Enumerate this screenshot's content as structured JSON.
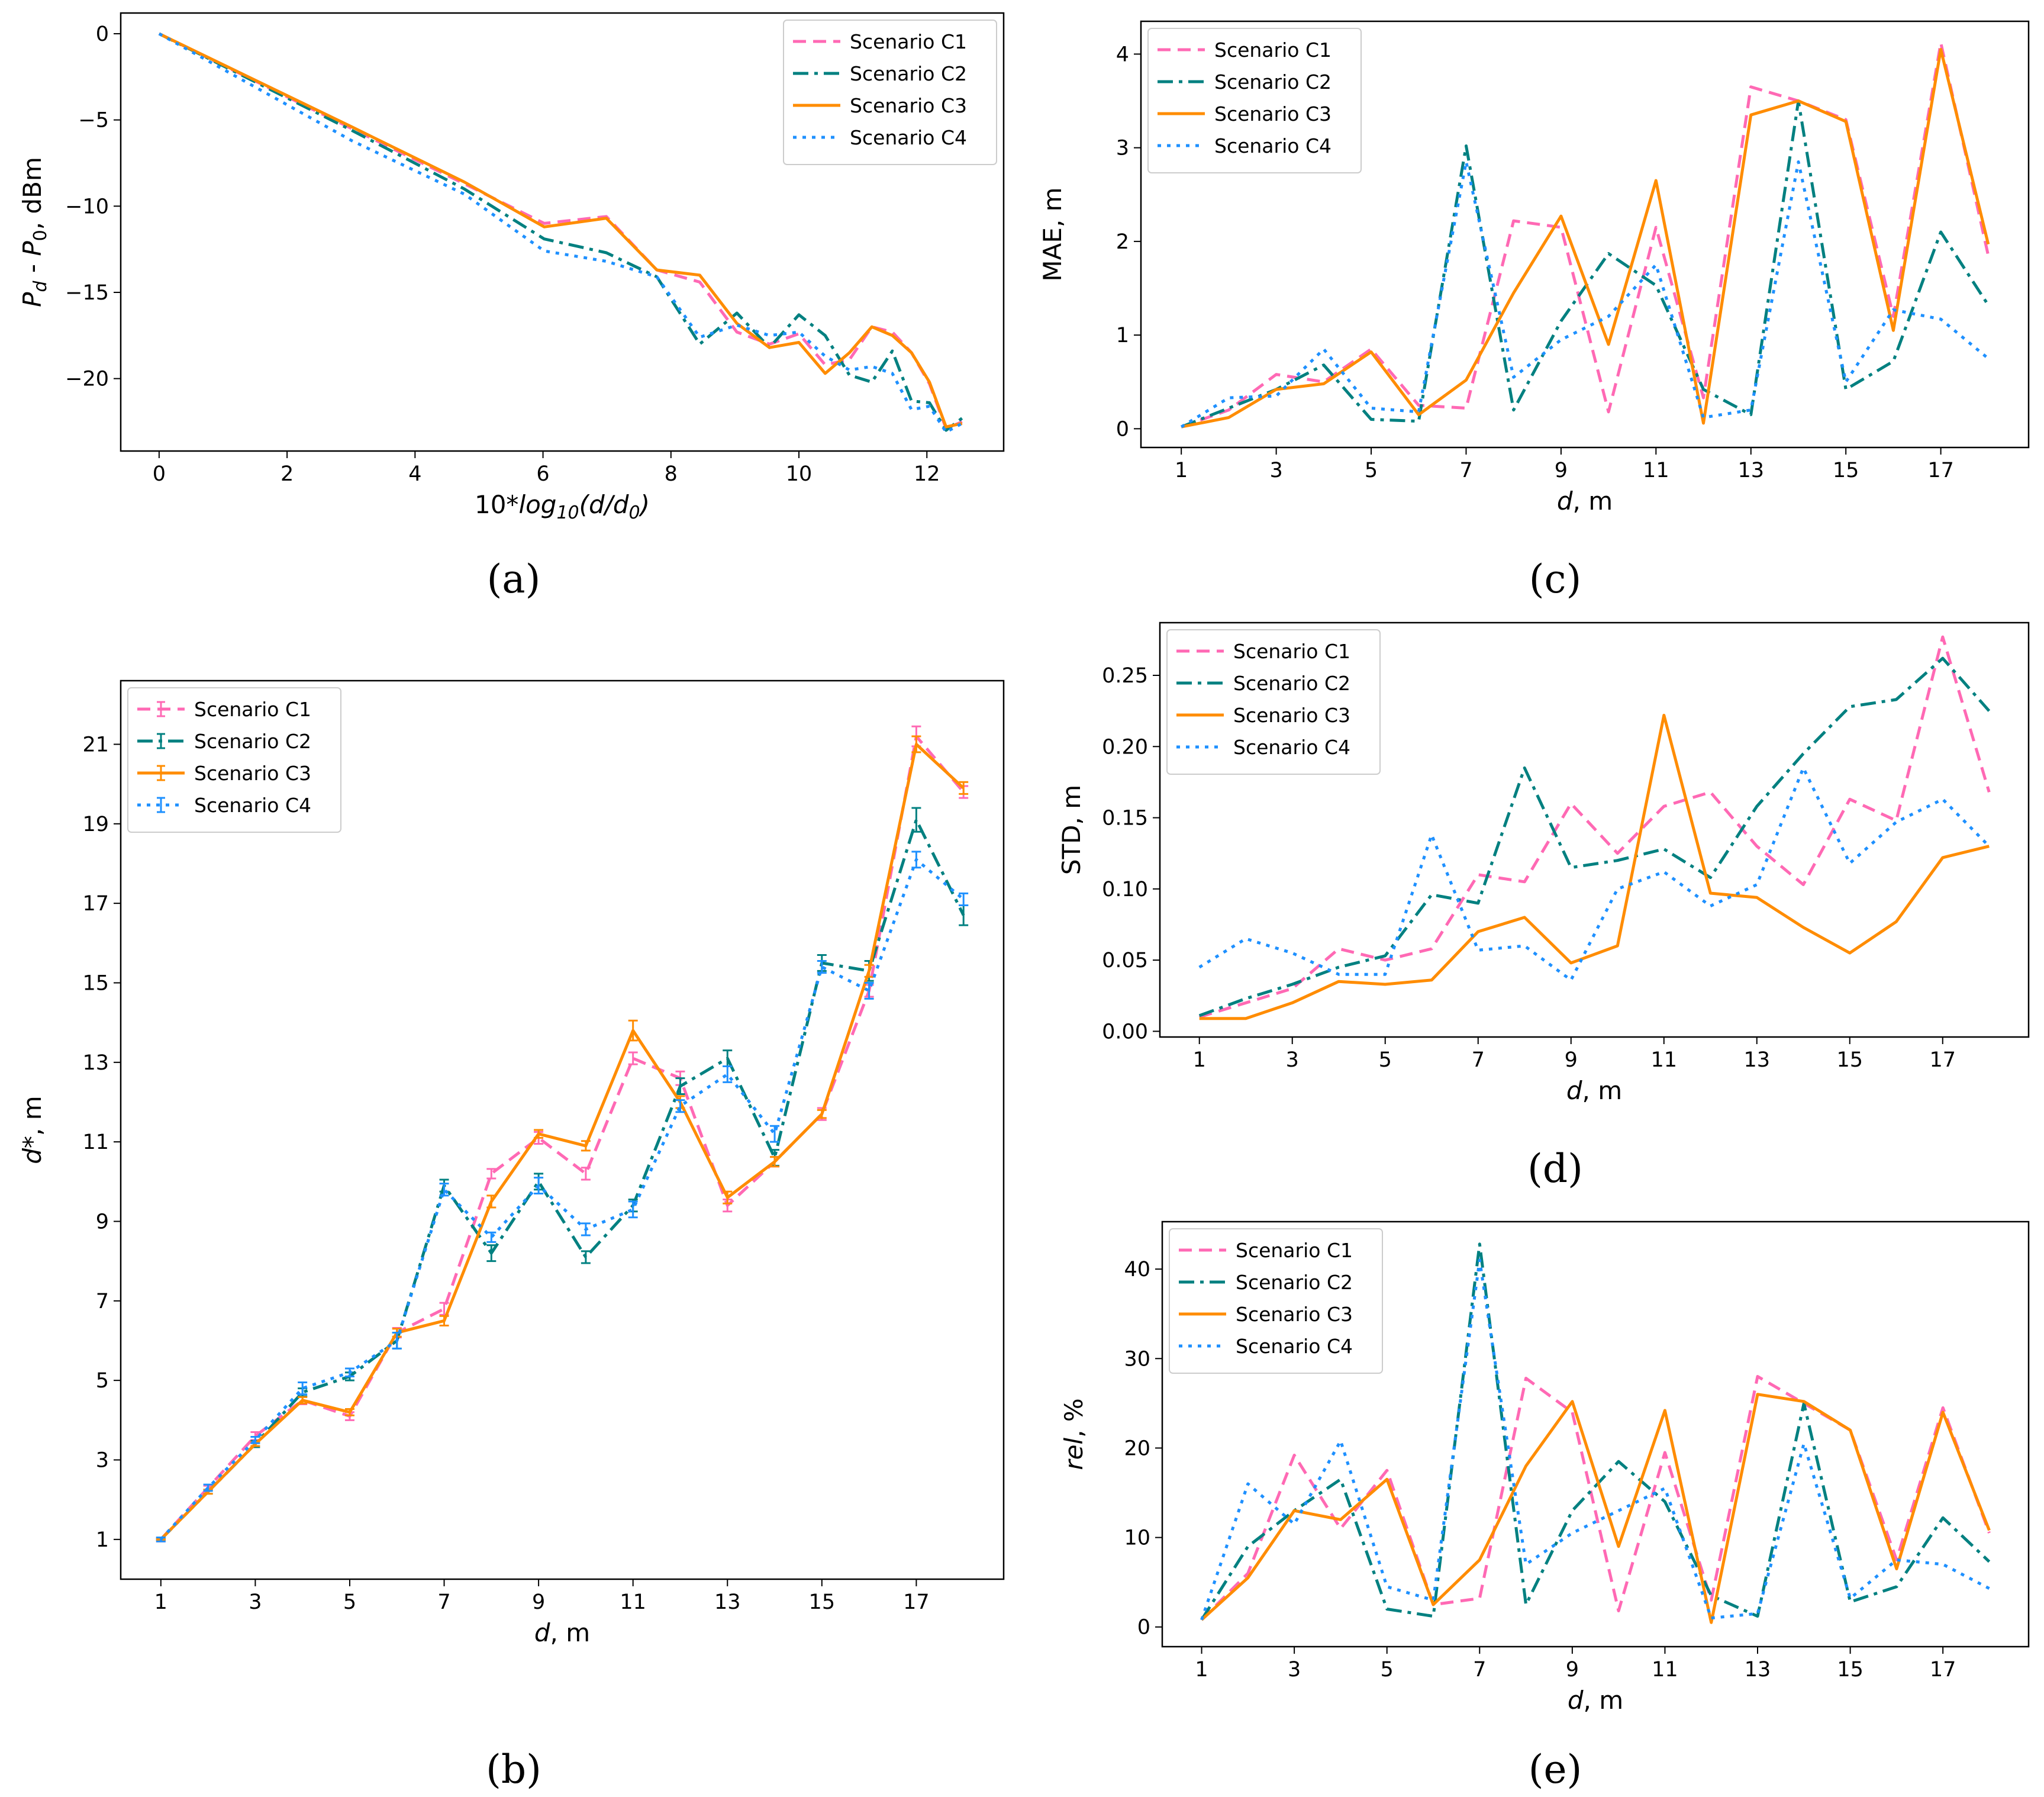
{
  "figure": {
    "captions": [
      "(a)",
      "(b)",
      "(c)",
      "(d)",
      "(e)"
    ],
    "colors": {
      "C1": "#ff69b4",
      "C2": "#008080",
      "C3": "#ff8c00",
      "C4": "#1e90ff"
    },
    "legend_labels": [
      "Scenario C1",
      "Scenario C2",
      "Scenario C3",
      "Scenario C4"
    ]
  },
  "chart_data": [
    {
      "id": "a",
      "caption": "(a)",
      "type": "line",
      "xlabel": "10*log10(d/d0)",
      "ylabel": "Pd - P0, dBm",
      "xlim": [
        -0.6,
        13.2
      ],
      "ylim": [
        -24.2,
        1.2
      ],
      "xticks": [
        0,
        2,
        4,
        6,
        8,
        10,
        12
      ],
      "xtick_labels": [
        "0",
        "2",
        "4",
        "6",
        "8",
        "10",
        "12"
      ],
      "yticks": [
        0,
        -5,
        -10,
        -15,
        -20
      ],
      "ytick_labels": [
        "0",
        "−5",
        "−10",
        "−15",
        "−20"
      ],
      "legend_position": "top-right",
      "x": [
        0,
        3.01,
        4.77,
        6.02,
        6.99,
        7.78,
        8.45,
        9.03,
        9.54,
        10.0,
        10.41,
        10.79,
        11.14,
        11.46,
        11.76,
        12.04,
        12.3,
        12.55
      ],
      "series": [
        {
          "name": "Scenario C1",
          "values": [
            0,
            -5.5,
            -8.7,
            -11.0,
            -10.6,
            -13.7,
            -14.4,
            -17.3,
            -18.0,
            -17.4,
            -19.2,
            -18.9,
            -17.0,
            -17.3,
            -18.5,
            -20.3,
            -22.9,
            -22.5
          ]
        },
        {
          "name": "Scenario C2",
          "values": [
            0,
            -5.6,
            -9.0,
            -11.9,
            -12.7,
            -14.1,
            -18.0,
            -16.2,
            -18.2,
            -16.3,
            -17.5,
            -19.8,
            -20.2,
            -18.4,
            -21.3,
            -21.4,
            -23.0,
            -22.3
          ]
        },
        {
          "name": "Scenario C3",
          "values": [
            0,
            -5.4,
            -8.6,
            -11.2,
            -10.7,
            -13.7,
            -14.0,
            -16.8,
            -18.2,
            -17.9,
            -19.7,
            -18.5,
            -17.0,
            -17.5,
            -18.5,
            -20.2,
            -22.8,
            -22.6
          ]
        },
        {
          "name": "Scenario C4",
          "values": [
            0,
            -6.2,
            -9.3,
            -12.6,
            -13.2,
            -14.1,
            -17.6,
            -16.9,
            -17.5,
            -17.3,
            -18.7,
            -19.5,
            -19.3,
            -19.7,
            -21.8,
            -21.6,
            -23.1,
            -22.6
          ]
        }
      ]
    },
    {
      "id": "b",
      "caption": "(b)",
      "type": "line",
      "xlabel": "d, m",
      "ylabel": "d*, m",
      "xlim": [
        0.15,
        18.85
      ],
      "ylim": [
        0,
        22.6
      ],
      "xticks": [
        1,
        3,
        5,
        7,
        9,
        11,
        13,
        15,
        17
      ],
      "xtick_labels": [
        "1",
        "3",
        "5",
        "7",
        "9",
        "11",
        "13",
        "15",
        "17"
      ],
      "yticks": [
        1,
        3,
        5,
        7,
        9,
        11,
        13,
        15,
        17,
        19,
        21
      ],
      "ytick_labels": [
        "1",
        "3",
        "5",
        "7",
        "9",
        "11",
        "13",
        "15",
        "17",
        "19",
        "21"
      ],
      "legend_position": "top-left",
      "x": [
        1,
        2,
        3,
        4,
        5,
        6,
        7,
        8,
        9,
        10,
        11,
        12,
        13,
        14,
        15,
        16,
        17,
        18
      ],
      "series": [
        {
          "name": "Scenario C1",
          "values": [
            1.0,
            2.3,
            3.6,
            4.5,
            4.1,
            6.2,
            6.8,
            10.2,
            11.1,
            10.2,
            13.1,
            12.6,
            9.4,
            10.5,
            11.7,
            14.8,
            21.2,
            19.8
          ],
          "errors": [
            0.05,
            0.05,
            0.1,
            0.1,
            0.1,
            0.12,
            0.15,
            0.12,
            0.15,
            0.15,
            0.15,
            0.17,
            0.15,
            0.12,
            0.15,
            0.15,
            0.25,
            0.15
          ]
        },
        {
          "name": "Scenario C2",
          "values": [
            1.0,
            2.2,
            3.4,
            4.7,
            5.1,
            6.0,
            9.9,
            8.2,
            10.0,
            8.1,
            9.4,
            12.4,
            13.1,
            10.6,
            15.5,
            15.3,
            19.1,
            16.7
          ],
          "errors": [
            0.02,
            0.05,
            0.08,
            0.1,
            0.1,
            0.2,
            0.15,
            0.2,
            0.2,
            0.15,
            0.15,
            0.2,
            0.2,
            0.2,
            0.2,
            0.25,
            0.3,
            0.25
          ]
        },
        {
          "name": "Scenario C3",
          "values": [
            1.0,
            2.2,
            3.4,
            4.5,
            4.2,
            6.2,
            6.5,
            9.5,
            11.2,
            10.9,
            13.8,
            12.0,
            9.6,
            10.5,
            11.7,
            15.3,
            21.0,
            19.9
          ],
          "errors": [
            0.02,
            0.05,
            0.05,
            0.08,
            0.08,
            0.1,
            0.12,
            0.15,
            0.1,
            0.12,
            0.25,
            0.15,
            0.15,
            0.12,
            0.1,
            0.15,
            0.2,
            0.15
          ]
        },
        {
          "name": "Scenario C4",
          "values": [
            1.0,
            2.3,
            3.5,
            4.8,
            5.2,
            6.0,
            9.8,
            8.6,
            9.9,
            8.8,
            9.3,
            11.9,
            12.7,
            11.2,
            15.4,
            14.8,
            18.1,
            17.1
          ],
          "errors": [
            0.05,
            0.08,
            0.08,
            0.15,
            0.1,
            0.2,
            0.15,
            0.12,
            0.2,
            0.15,
            0.2,
            0.15,
            0.2,
            0.2,
            0.15,
            0.2,
            0.2,
            0.15
          ]
        }
      ]
    },
    {
      "id": "c",
      "caption": "(c)",
      "type": "line",
      "xlabel": "d, m",
      "ylabel": "MAE, m",
      "xlim": [
        0.15,
        18.85
      ],
      "ylim": [
        -0.2,
        4.35
      ],
      "xticks": [
        1,
        3,
        5,
        7,
        9,
        11,
        13,
        15,
        17
      ],
      "xtick_labels": [
        "1",
        "3",
        "5",
        "7",
        "9",
        "11",
        "13",
        "15",
        "17"
      ],
      "yticks": [
        0,
        1,
        2,
        3,
        4
      ],
      "ytick_labels": [
        "0",
        "1",
        "2",
        "3",
        "4"
      ],
      "legend_position": "top-left",
      "x": [
        1,
        2,
        3,
        4,
        5,
        6,
        7,
        8,
        9,
        10,
        11,
        12,
        13,
        14,
        15,
        16,
        17,
        18
      ],
      "series": [
        {
          "name": "Scenario C1",
          "values": [
            0.02,
            0.2,
            0.58,
            0.5,
            0.85,
            0.25,
            0.22,
            2.22,
            2.15,
            0.18,
            2.15,
            0.33,
            3.65,
            3.5,
            3.3,
            1.2,
            4.12,
            1.85
          ]
        },
        {
          "name": "Scenario C2",
          "values": [
            0.02,
            0.22,
            0.42,
            0.68,
            0.1,
            0.08,
            3.02,
            0.2,
            1.15,
            1.87,
            1.53,
            0.42,
            0.15,
            3.5,
            0.42,
            0.72,
            2.1,
            1.32
          ]
        },
        {
          "name": "Scenario C3",
          "values": [
            0.02,
            0.12,
            0.42,
            0.48,
            0.82,
            0.15,
            0.52,
            1.45,
            2.27,
            0.9,
            2.65,
            0.06,
            3.35,
            3.5,
            3.28,
            1.05,
            4.05,
            1.97
          ]
        },
        {
          "name": "Scenario C4",
          "values": [
            0.02,
            0.33,
            0.35,
            0.85,
            0.22,
            0.18,
            2.85,
            0.55,
            0.95,
            1.2,
            1.75,
            0.12,
            0.2,
            2.85,
            0.5,
            1.27,
            1.17,
            0.75
          ]
        }
      ]
    },
    {
      "id": "d",
      "caption": "(d)",
      "type": "line",
      "xlabel": "d, m",
      "ylabel": "STD, m",
      "xlim": [
        0.15,
        18.85
      ],
      "ylim": [
        -0.004,
        0.287
      ],
      "xticks": [
        1,
        3,
        5,
        7,
        9,
        11,
        13,
        15,
        17
      ],
      "xtick_labels": [
        "1",
        "3",
        "5",
        "7",
        "9",
        "11",
        "13",
        "15",
        "17"
      ],
      "yticks": [
        0,
        0.05,
        0.1,
        0.15,
        0.2,
        0.25
      ],
      "ytick_labels": [
        "0.00",
        "0.05",
        "0.10",
        "0.15",
        "0.20",
        "0.25"
      ],
      "legend_position": "top-left",
      "x": [
        1,
        2,
        3,
        4,
        5,
        6,
        7,
        8,
        9,
        10,
        11,
        12,
        13,
        14,
        15,
        16,
        17,
        18
      ],
      "series": [
        {
          "name": "Scenario C1",
          "values": [
            0.01,
            0.02,
            0.03,
            0.058,
            0.05,
            0.058,
            0.11,
            0.105,
            0.16,
            0.125,
            0.158,
            0.168,
            0.13,
            0.103,
            0.163,
            0.148,
            0.277,
            0.168
          ]
        },
        {
          "name": "Scenario C2",
          "values": [
            0.011,
            0.023,
            0.033,
            0.045,
            0.053,
            0.096,
            0.09,
            0.185,
            0.115,
            0.12,
            0.128,
            0.108,
            0.158,
            0.195,
            0.228,
            0.233,
            0.262,
            0.225
          ]
        },
        {
          "name": "Scenario C3",
          "values": [
            0.009,
            0.009,
            0.02,
            0.035,
            0.033,
            0.036,
            0.07,
            0.08,
            0.048,
            0.06,
            0.222,
            0.097,
            0.094,
            0.073,
            0.055,
            0.077,
            0.122,
            0.13
          ]
        },
        {
          "name": "Scenario C4",
          "values": [
            0.045,
            0.065,
            0.055,
            0.04,
            0.04,
            0.138,
            0.057,
            0.06,
            0.036,
            0.1,
            0.112,
            0.088,
            0.103,
            0.185,
            0.118,
            0.147,
            0.163,
            0.13
          ]
        }
      ]
    },
    {
      "id": "e",
      "caption": "(e)",
      "type": "line",
      "xlabel": "d, m",
      "ylabel": "rel, %",
      "xlim": [
        0.15,
        18.85
      ],
      "ylim": [
        -2.2,
        45.3
      ],
      "xticks": [
        1,
        3,
        5,
        7,
        9,
        11,
        13,
        15,
        17
      ],
      "xtick_labels": [
        "1",
        "3",
        "5",
        "7",
        "9",
        "11",
        "13",
        "15",
        "17"
      ],
      "yticks": [
        0,
        10,
        20,
        30,
        40
      ],
      "ytick_labels": [
        "0",
        "10",
        "20",
        "30",
        "40"
      ],
      "legend_position": "top-left",
      "x": [
        1,
        2,
        3,
        4,
        5,
        6,
        7,
        8,
        9,
        10,
        11,
        12,
        13,
        14,
        15,
        16,
        17,
        18
      ],
      "series": [
        {
          "name": "Scenario C1",
          "values": [
            0.8,
            6.0,
            19.2,
            11.0,
            17.5,
            2.5,
            3.2,
            27.8,
            24.0,
            1.8,
            19.5,
            3.0,
            28.0,
            25.0,
            22.0,
            7.5,
            24.5,
            10.5
          ]
        },
        {
          "name": "Scenario C2",
          "values": [
            0.8,
            9.0,
            13.0,
            16.5,
            2.0,
            1.2,
            42.8,
            2.5,
            13.0,
            18.5,
            14.0,
            3.5,
            1.2,
            25.0,
            2.8,
            4.5,
            12.2,
            7.3
          ]
        },
        {
          "name": "Scenario C3",
          "values": [
            0.8,
            5.5,
            13.0,
            12.0,
            16.5,
            2.5,
            7.5,
            18.0,
            25.2,
            9.0,
            24.2,
            0.5,
            26.0,
            25.2,
            22.0,
            6.5,
            24.0,
            10.8
          ]
        },
        {
          "name": "Scenario C4",
          "values": [
            0.8,
            16.0,
            11.5,
            20.8,
            4.5,
            3.0,
            41.0,
            7.0,
            10.5,
            13.0,
            15.5,
            1.0,
            1.5,
            20.5,
            3.2,
            7.5,
            7.0,
            4.3
          ]
        }
      ]
    }
  ]
}
